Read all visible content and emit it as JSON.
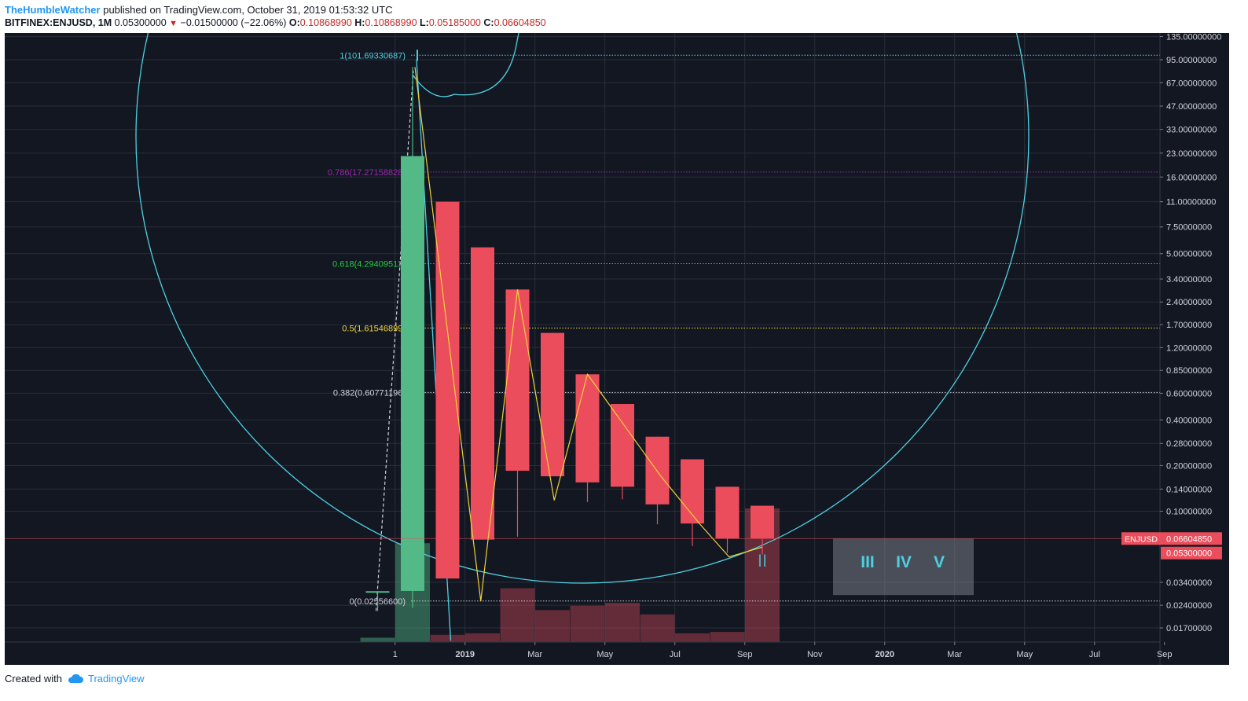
{
  "header": {
    "author": "TheHumbleWatcher",
    "published_text": "published on TradingView.com, October 31, 2019 01:53:32 UTC",
    "symbol": "BITFINEX:ENJUSD, 1M",
    "last": "0.05300000",
    "change": "−0.01500000 (−22.06%)",
    "o_label": "O:",
    "o": "0.10868990",
    "h_label": "H:",
    "h": "0.10868990",
    "l_label": "L:",
    "l": "0.05185000",
    "c_label": "C:",
    "c": "0.06604850"
  },
  "footer": {
    "created_with": "Created with",
    "brand": "TradingView"
  },
  "colors": {
    "background": "#131722",
    "up": "#53b987",
    "down": "#eb4d5c",
    "cyan": "#4dd0e1",
    "yellow": "#f0d33c",
    "purple": "#9c27b0",
    "green_level": "#23ce3f",
    "grid": "#2a2e39",
    "axis_text": "#d1d4dc"
  },
  "chart_data": {
    "type": "candlestick",
    "symbol": "ENJUSD",
    "scale": "log",
    "ylim": [
      0.015,
      150
    ],
    "y_ticks": [
      "135.00000000",
      "95.00000000",
      "67.00000000",
      "47.00000000",
      "33.00000000",
      "23.00000000",
      "16.00000000",
      "11.00000000",
      "7.50000000",
      "5.00000000",
      "3.40000000",
      "2.40000000",
      "1.70000000",
      "1.20000000",
      "0.85000000",
      "0.60000000",
      "0.40000000",
      "0.28000000",
      "0.20000000",
      "0.14000000",
      "0.10000000",
      "0.03400000",
      "0.02400000",
      "0.01700000"
    ],
    "y_tick_values": [
      135,
      95,
      67,
      47,
      33,
      23,
      16,
      11,
      7.5,
      5,
      3.4,
      2.4,
      1.7,
      1.2,
      0.85,
      0.6,
      0.4,
      0.28,
      0.2,
      0.14,
      0.1,
      0.034,
      0.024,
      0.017
    ],
    "x_ticks": [
      {
        "label": "1",
        "m": -0.5,
        "bold": false
      },
      {
        "label": "2019",
        "m": 1.5,
        "bold": true
      },
      {
        "label": "Mar",
        "m": 3.5,
        "bold": false
      },
      {
        "label": "May",
        "m": 5.5,
        "bold": false
      },
      {
        "label": "Jul",
        "m": 7.5,
        "bold": false
      },
      {
        "label": "Sep",
        "m": 9.5,
        "bold": false
      },
      {
        "label": "Nov",
        "m": 11.5,
        "bold": false
      },
      {
        "label": "2020",
        "m": 13.5,
        "bold": true
      },
      {
        "label": "Mar",
        "m": 15.5,
        "bold": false
      },
      {
        "label": "May",
        "m": 17.5,
        "bold": false
      },
      {
        "label": "Jul",
        "m": 19.5,
        "bold": false
      },
      {
        "label": "Sep",
        "m": 21.5,
        "bold": false
      }
    ],
    "candles": [
      {
        "t": "2018-11",
        "m": -1,
        "open": 0.0295,
        "high": 0.0297,
        "low": 0.022,
        "close": 0.0297
      },
      {
        "t": "2018-12",
        "m": 0,
        "open": 0.0298,
        "high": 85,
        "low": 0.023,
        "close": 22
      },
      {
        "t": "2019-01",
        "m": 1,
        "open": 11,
        "high": 11,
        "low": 0.036,
        "close": 0.036
      },
      {
        "t": "2019-02",
        "m": 2,
        "open": 5.5,
        "high": 5.5,
        "low": 0.065,
        "close": 0.065
      },
      {
        "t": "2019-03",
        "m": 3,
        "open": 2.9,
        "high": 2.9,
        "low": 0.068,
        "close": 0.185
      },
      {
        "t": "2019-04",
        "m": 4,
        "open": 1.5,
        "high": 1.5,
        "low": 0.17,
        "close": 0.17
      },
      {
        "t": "2019-05",
        "m": 5,
        "open": 0.8,
        "high": 0.8,
        "low": 0.115,
        "close": 0.155
      },
      {
        "t": "2019-06",
        "m": 6,
        "open": 0.51,
        "high": 0.51,
        "low": 0.12,
        "close": 0.145
      },
      {
        "t": "2019-07",
        "m": 7,
        "open": 0.31,
        "high": 0.31,
        "low": 0.082,
        "close": 0.111
      },
      {
        "t": "2019-08",
        "m": 8,
        "open": 0.22,
        "high": 0.22,
        "low": 0.059,
        "close": 0.083
      },
      {
        "t": "2019-09",
        "m": 9,
        "open": 0.145,
        "high": 0.145,
        "low": 0.053,
        "close": 0.066
      },
      {
        "t": "2019-10",
        "m": 10,
        "open": 0.1087,
        "high": 0.1087,
        "low": 0.05185,
        "close": 0.06605
      }
    ],
    "volume": [
      {
        "m": -1,
        "v": 0.03,
        "up": true
      },
      {
        "m": 0,
        "v": 0.68,
        "up": true
      },
      {
        "m": 1,
        "v": 0.05,
        "up": false
      },
      {
        "m": 2,
        "v": 0.06,
        "up": false
      },
      {
        "m": 3,
        "v": 0.37,
        "up": false
      },
      {
        "m": 4,
        "v": 0.22,
        "up": false
      },
      {
        "m": 5,
        "v": 0.25,
        "up": false
      },
      {
        "m": 6,
        "v": 0.27,
        "up": false
      },
      {
        "m": 7,
        "v": 0.19,
        "up": false
      },
      {
        "m": 8,
        "v": 0.06,
        "up": false
      },
      {
        "m": 9,
        "v": 0.07,
        "up": false
      },
      {
        "m": 10,
        "v": 0.92,
        "up": false
      }
    ],
    "fib_levels": [
      {
        "label": "1(101.69330687)",
        "value": 101.6933,
        "color": "#4dd0e1"
      },
      {
        "label": "0.786(17.27158828)",
        "value": 17.2716,
        "color": "#9c27b0"
      },
      {
        "label": "0.618(4.29409513)",
        "value": 4.2941,
        "color": "#23ce3f"
      },
      {
        "label": "0.5(1.61546899)",
        "value": 1.6155,
        "color": "#f0d33c"
      },
      {
        "label": "0.382(0.60771196)",
        "value": 0.6077,
        "color": "#d1d4dc"
      },
      {
        "label": "0(0.02556600)",
        "value": 0.025566,
        "color": "#d1d4dc"
      }
    ],
    "price_labels": [
      {
        "text": "ENJUSD",
        "kind": "tag"
      },
      {
        "text": "0.06604850",
        "value": 0.0660485
      },
      {
        "text": "0.05300000",
        "value": 0.053
      }
    ],
    "wave_labels": {
      "current": "II",
      "future": [
        "III",
        "IV",
        "V"
      ]
    }
  }
}
